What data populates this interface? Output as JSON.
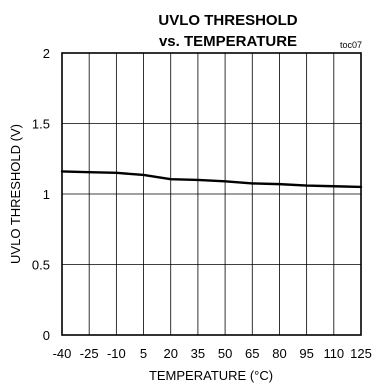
{
  "chart_data": {
    "type": "line",
    "title": "UVLO THRESHOLD",
    "subtitle": "vs. TEMPERATURE",
    "figure_code": "toc07",
    "xlabel": "TEMPERATURE (°C)",
    "ylabel": "UVLO THRESHOLD (V)",
    "xlim": [
      -40,
      125
    ],
    "ylim": [
      0,
      2
    ],
    "x_ticks": [
      -40,
      -25,
      -10,
      5,
      20,
      35,
      50,
      65,
      80,
      95,
      110,
      125
    ],
    "x_tick_labels": [
      "-40",
      "-25",
      "-10",
      "5",
      "20",
      "35",
      "50",
      "65",
      "80",
      "95",
      "110",
      "125"
    ],
    "y_ticks": [
      0,
      0.5,
      1,
      1.5,
      2
    ],
    "y_tick_labels": [
      "0",
      "0.5",
      "1",
      "1.5",
      "2"
    ],
    "grid": true,
    "series": [
      {
        "color": "#000000",
        "x": [
          -40,
          -25,
          -10,
          5,
          20,
          35,
          50,
          65,
          80,
          95,
          110,
          125
        ],
        "y": [
          1.16,
          1.155,
          1.15,
          1.135,
          1.105,
          1.1,
          1.09,
          1.075,
          1.07,
          1.06,
          1.055,
          1.05
        ]
      }
    ]
  }
}
